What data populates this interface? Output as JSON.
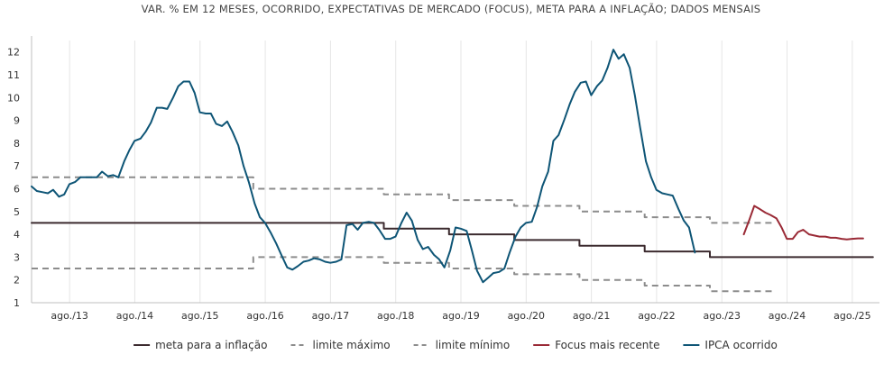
{
  "chart_data": {
    "type": "line",
    "title": "VAR. % EM 12 MESES, OCORRIDO, EXPECTATIVAS DE MERCADO (FOCUS), META PARA A INFLAÇÃO; DADOS MENSAIS",
    "xlabel": "",
    "ylabel": "",
    "x_range": [
      2013.0,
      2026.0
    ],
    "ylim": [
      1,
      12.5
    ],
    "yticks": [
      1,
      2,
      3,
      4,
      5,
      6,
      7,
      8,
      9,
      10,
      11,
      12
    ],
    "xticks": [
      {
        "x": 2013.583,
        "label": "ago./13"
      },
      {
        "x": 2014.583,
        "label": "ago./14"
      },
      {
        "x": 2015.583,
        "label": "ago./15"
      },
      {
        "x": 2016.583,
        "label": "ago./16"
      },
      {
        "x": 2017.583,
        "label": "ago./17"
      },
      {
        "x": 2018.583,
        "label": "ago./18"
      },
      {
        "x": 2019.583,
        "label": "ago./19"
      },
      {
        "x": 2020.583,
        "label": "ago./20"
      },
      {
        "x": 2021.583,
        "label": "ago./21"
      },
      {
        "x": 2022.583,
        "label": "ago./22"
      },
      {
        "x": 2023.583,
        "label": "ago./23"
      },
      {
        "x": 2024.583,
        "label": "ago./24"
      },
      {
        "x": 2025.583,
        "label": "ago./25"
      }
    ],
    "grid": "vertical",
    "legend_position": "bottom",
    "series": [
      {
        "name": "meta para a inflação",
        "style": "solid",
        "color": "#3b2a2e",
        "points": [
          [
            2013.0,
            4.5
          ],
          [
            2018.4,
            4.5
          ],
          [
            2018.4,
            4.25
          ],
          [
            2019.4,
            4.25
          ],
          [
            2019.4,
            4.0
          ],
          [
            2020.4,
            4.0
          ],
          [
            2020.4,
            3.75
          ],
          [
            2021.4,
            3.75
          ],
          [
            2021.4,
            3.5
          ],
          [
            2022.4,
            3.5
          ],
          [
            2022.4,
            3.25
          ],
          [
            2023.4,
            3.25
          ],
          [
            2023.4,
            3.0
          ],
          [
            2025.9,
            3.0
          ]
        ]
      },
      {
        "name": "limite máximo",
        "style": "dashed",
        "color": "#8c8c8c",
        "points": [
          [
            2013.0,
            6.5
          ],
          [
            2016.4,
            6.5
          ],
          [
            2016.4,
            6.0
          ],
          [
            2018.4,
            6.0
          ],
          [
            2018.4,
            5.75
          ],
          [
            2019.4,
            5.75
          ],
          [
            2019.4,
            5.5
          ],
          [
            2020.4,
            5.5
          ],
          [
            2020.4,
            5.25
          ],
          [
            2021.4,
            5.25
          ],
          [
            2021.4,
            5.0
          ],
          [
            2022.4,
            5.0
          ],
          [
            2022.4,
            4.75
          ],
          [
            2023.4,
            4.75
          ],
          [
            2023.4,
            4.5
          ],
          [
            2024.4,
            4.5
          ]
        ]
      },
      {
        "name": "limite mínimo",
        "style": "dashed",
        "color": "#8c8c8c",
        "points": [
          [
            2013.0,
            2.5
          ],
          [
            2016.4,
            2.5
          ],
          [
            2016.4,
            3.0
          ],
          [
            2018.4,
            3.0
          ],
          [
            2018.4,
            2.75
          ],
          [
            2019.4,
            2.75
          ],
          [
            2019.4,
            2.5
          ],
          [
            2020.4,
            2.5
          ],
          [
            2020.4,
            2.25
          ],
          [
            2021.4,
            2.25
          ],
          [
            2021.4,
            2.0
          ],
          [
            2022.4,
            2.0
          ],
          [
            2022.4,
            1.75
          ],
          [
            2023.4,
            1.75
          ],
          [
            2023.4,
            1.5
          ],
          [
            2024.4,
            1.5
          ]
        ]
      },
      {
        "name": "Focus mais recente",
        "style": "solid",
        "color": "#9a2a36",
        "points": [
          [
            2023.92,
            4.0
          ],
          [
            2024.0,
            4.6
          ],
          [
            2024.08,
            5.25
          ],
          [
            2024.17,
            5.1
          ],
          [
            2024.25,
            4.95
          ],
          [
            2024.33,
            4.85
          ],
          [
            2024.42,
            4.7
          ],
          [
            2024.5,
            4.3
          ],
          [
            2024.58,
            3.8
          ],
          [
            2024.67,
            3.8
          ],
          [
            2024.75,
            4.1
          ],
          [
            2024.83,
            4.2
          ],
          [
            2024.92,
            4.0
          ],
          [
            2025.0,
            3.95
          ],
          [
            2025.08,
            3.9
          ],
          [
            2025.17,
            3.9
          ],
          [
            2025.25,
            3.85
          ],
          [
            2025.33,
            3.85
          ],
          [
            2025.42,
            3.8
          ],
          [
            2025.5,
            3.78
          ],
          [
            2025.58,
            3.8
          ],
          [
            2025.67,
            3.82
          ],
          [
            2025.75,
            3.82
          ]
        ]
      },
      {
        "name": "IPCA ocorrido",
        "style": "solid",
        "color": "#0e5576",
        "points": [
          [
            2013.0,
            6.1
          ],
          [
            2013.08,
            5.9
          ],
          [
            2013.17,
            5.85
          ],
          [
            2013.25,
            5.8
          ],
          [
            2013.33,
            5.95
          ],
          [
            2013.42,
            5.65
          ],
          [
            2013.5,
            5.75
          ],
          [
            2013.58,
            6.2
          ],
          [
            2013.67,
            6.3
          ],
          [
            2013.75,
            6.5
          ],
          [
            2013.83,
            6.5
          ],
          [
            2013.92,
            6.5
          ],
          [
            2014.0,
            6.5
          ],
          [
            2014.08,
            6.75
          ],
          [
            2014.17,
            6.55
          ],
          [
            2014.25,
            6.6
          ],
          [
            2014.33,
            6.5
          ],
          [
            2014.42,
            7.2
          ],
          [
            2014.5,
            7.7
          ],
          [
            2014.58,
            8.1
          ],
          [
            2014.67,
            8.2
          ],
          [
            2014.75,
            8.5
          ],
          [
            2014.83,
            8.9
          ],
          [
            2014.92,
            9.55
          ],
          [
            2015.0,
            9.55
          ],
          [
            2015.08,
            9.5
          ],
          [
            2015.17,
            10.0
          ],
          [
            2015.25,
            10.5
          ],
          [
            2015.33,
            10.7
          ],
          [
            2015.42,
            10.7
          ],
          [
            2015.5,
            10.2
          ],
          [
            2015.58,
            9.35
          ],
          [
            2015.67,
            9.3
          ],
          [
            2015.75,
            9.3
          ],
          [
            2015.83,
            8.85
          ],
          [
            2015.92,
            8.75
          ],
          [
            2016.0,
            8.95
          ],
          [
            2016.08,
            8.5
          ],
          [
            2016.17,
            7.9
          ],
          [
            2016.25,
            7.0
          ],
          [
            2016.33,
            6.3
          ],
          [
            2016.42,
            5.35
          ],
          [
            2016.5,
            4.75
          ],
          [
            2016.58,
            4.5
          ],
          [
            2016.67,
            4.05
          ],
          [
            2016.75,
            3.6
          ],
          [
            2016.83,
            3.1
          ],
          [
            2016.92,
            2.55
          ],
          [
            2017.0,
            2.45
          ],
          [
            2017.08,
            2.6
          ],
          [
            2017.17,
            2.8
          ],
          [
            2017.25,
            2.85
          ],
          [
            2017.33,
            2.95
          ],
          [
            2017.42,
            2.9
          ],
          [
            2017.5,
            2.8
          ],
          [
            2017.58,
            2.75
          ],
          [
            2017.67,
            2.8
          ],
          [
            2017.75,
            2.9
          ],
          [
            2017.83,
            4.4
          ],
          [
            2017.92,
            4.45
          ],
          [
            2018.0,
            4.2
          ],
          [
            2018.08,
            4.5
          ],
          [
            2018.17,
            4.55
          ],
          [
            2018.25,
            4.5
          ],
          [
            2018.33,
            4.2
          ],
          [
            2018.42,
            3.8
          ],
          [
            2018.5,
            3.8
          ],
          [
            2018.58,
            3.9
          ],
          [
            2018.67,
            4.5
          ],
          [
            2018.75,
            4.95
          ],
          [
            2018.83,
            4.6
          ],
          [
            2018.92,
            3.75
          ],
          [
            2019.0,
            3.35
          ],
          [
            2019.08,
            3.45
          ],
          [
            2019.17,
            3.1
          ],
          [
            2019.25,
            2.9
          ],
          [
            2019.33,
            2.55
          ],
          [
            2019.42,
            3.3
          ],
          [
            2019.5,
            4.3
          ],
          [
            2019.58,
            4.25
          ],
          [
            2019.67,
            4.15
          ],
          [
            2019.75,
            3.3
          ],
          [
            2019.83,
            2.4
          ],
          [
            2019.92,
            1.9
          ],
          [
            2020.0,
            2.1
          ],
          [
            2020.08,
            2.3
          ],
          [
            2020.17,
            2.35
          ],
          [
            2020.25,
            2.5
          ],
          [
            2020.33,
            3.2
          ],
          [
            2020.42,
            3.9
          ],
          [
            2020.5,
            4.3
          ],
          [
            2020.58,
            4.5
          ],
          [
            2020.67,
            4.55
          ],
          [
            2020.75,
            5.2
          ],
          [
            2020.83,
            6.1
          ],
          [
            2020.92,
            6.75
          ],
          [
            2021.0,
            8.1
          ],
          [
            2021.08,
            8.35
          ],
          [
            2021.17,
            9.05
          ],
          [
            2021.25,
            9.7
          ],
          [
            2021.33,
            10.25
          ],
          [
            2021.42,
            10.65
          ],
          [
            2021.5,
            10.7
          ],
          [
            2021.58,
            10.1
          ],
          [
            2021.67,
            10.5
          ],
          [
            2021.75,
            10.75
          ],
          [
            2021.83,
            11.3
          ],
          [
            2021.92,
            12.1
          ],
          [
            2022.0,
            11.7
          ],
          [
            2022.08,
            11.9
          ],
          [
            2022.17,
            11.3
          ],
          [
            2022.25,
            10.1
          ],
          [
            2022.33,
            8.7
          ],
          [
            2022.42,
            7.2
          ],
          [
            2022.5,
            6.5
          ],
          [
            2022.58,
            5.95
          ],
          [
            2022.67,
            5.8
          ],
          [
            2022.75,
            5.75
          ],
          [
            2022.83,
            5.7
          ],
          [
            2022.92,
            5.1
          ],
          [
            2023.0,
            4.6
          ],
          [
            2023.08,
            4.3
          ],
          [
            2023.17,
            3.2
          ]
        ]
      }
    ]
  }
}
